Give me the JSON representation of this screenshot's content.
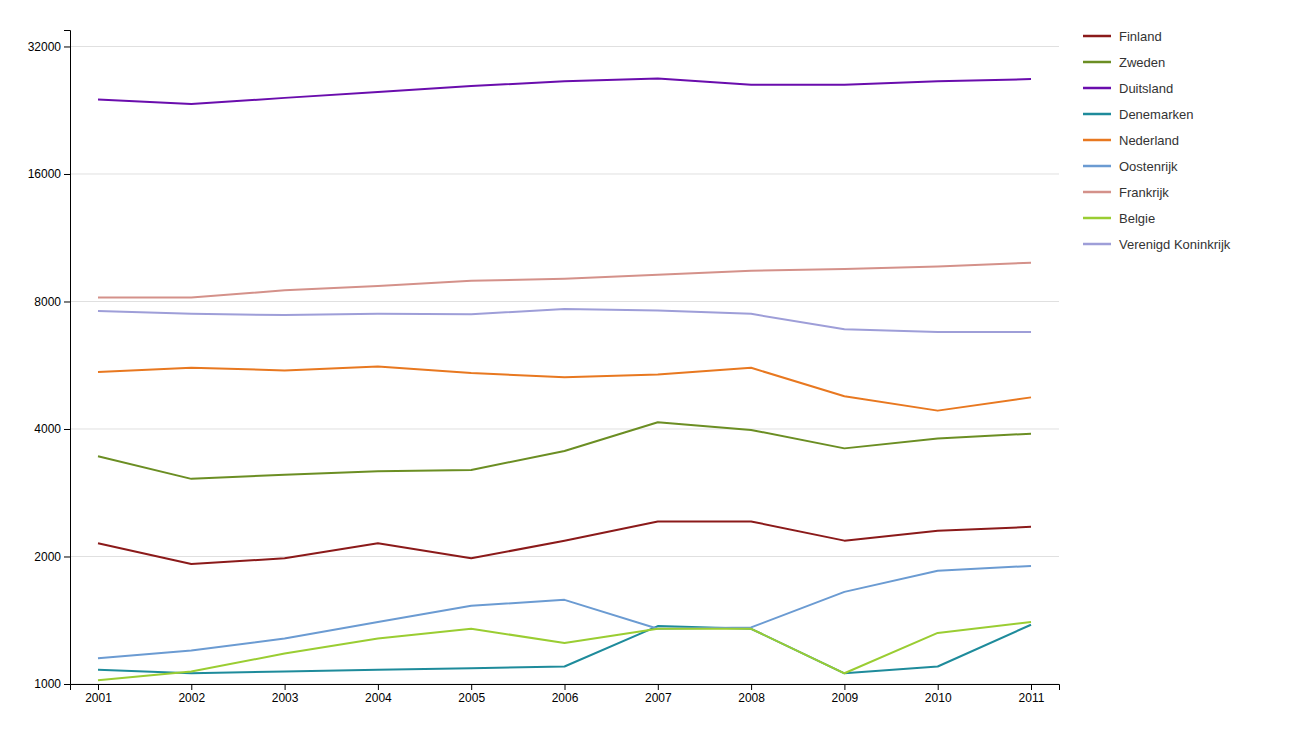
{
  "chart_data": {
    "type": "line",
    "x": [
      2001,
      2002,
      2003,
      2004,
      2005,
      2006,
      2007,
      2008,
      2009,
      2010,
      2011
    ],
    "series": [
      {
        "name": "Finland",
        "color": "#8B1A1A",
        "values": [
          2150,
          1920,
          1980,
          2150,
          1980,
          2180,
          2420,
          2420,
          2180,
          2300,
          2350
        ]
      },
      {
        "name": "Zweden",
        "color": "#6B8E23",
        "values": [
          3450,
          3050,
          3120,
          3180,
          3200,
          3550,
          4150,
          3980,
          3600,
          3800,
          3900
        ]
      },
      {
        "name": "Duitsland",
        "color": "#6A0DAD",
        "values": [
          24000,
          23400,
          24200,
          25000,
          25800,
          26500,
          26900,
          26000,
          26000,
          26500,
          26800
        ]
      },
      {
        "name": "Denemarken",
        "color": "#1E8B9B",
        "values": [
          1080,
          1060,
          1070,
          1080,
          1090,
          1100,
          1370,
          1350,
          1060,
          1100,
          1380
        ]
      },
      {
        "name": "Nederland",
        "color": "#E87820",
        "values": [
          5450,
          5580,
          5500,
          5620,
          5420,
          5300,
          5380,
          5580,
          4780,
          4420,
          4750
        ]
      },
      {
        "name": "Oostenrijk",
        "color": "#6B9BD2",
        "values": [
          1150,
          1200,
          1280,
          1400,
          1530,
          1580,
          1350,
          1360,
          1650,
          1850,
          1900
        ]
      },
      {
        "name": "Frankrijk",
        "color": "#D4918A",
        "values": [
          8180,
          8180,
          8500,
          8700,
          8950,
          9050,
          9250,
          9450,
          9550,
          9680,
          9880
        ]
      },
      {
        "name": "Belgie",
        "color": "#9ACD32",
        "values": [
          1020,
          1070,
          1180,
          1280,
          1350,
          1250,
          1350,
          1350,
          1060,
          1320,
          1400
        ]
      },
      {
        "name": "Verenigd Koninkrijk",
        "color": "#9E9ED8",
        "values": [
          7600,
          7480,
          7430,
          7480,
          7460,
          7680,
          7620,
          7480,
          6880,
          6780,
          6780
        ]
      }
    ],
    "log": "y",
    "xlim": [
      2000.7,
      2011.3
    ],
    "xticks": [
      2001,
      2002,
      2003,
      2004,
      2005,
      2006,
      2007,
      2008,
      2009,
      2010,
      2011
    ],
    "ylim": [
      1000,
      35000
    ],
    "yticks": [
      1000,
      2000,
      4000,
      8000,
      16000,
      32000
    ],
    "grid": true,
    "legend": "right"
  }
}
